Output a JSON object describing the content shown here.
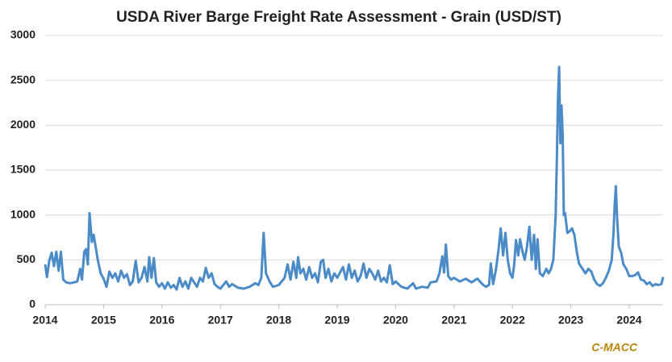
{
  "chart_data": {
    "type": "line",
    "title": "USDA River Barge Freight Rate Assessment - Grain (USD/ST)",
    "source": "C-MACC",
    "x": [
      2014.0,
      2014.03,
      2014.07,
      2014.11,
      2014.15,
      2014.19,
      2014.23,
      2014.27,
      2014.31,
      2014.36,
      2014.42,
      2014.5,
      2014.55,
      2014.6,
      2014.63,
      2014.67,
      2014.7,
      2014.73,
      2014.76,
      2014.8,
      2014.83,
      2014.86,
      2014.9,
      2014.95,
      2015.0,
      2015.05,
      2015.1,
      2015.15,
      2015.2,
      2015.25,
      2015.3,
      2015.35,
      2015.4,
      2015.45,
      2015.5,
      2015.55,
      2015.6,
      2015.65,
      2015.7,
      2015.75,
      2015.78,
      2015.82,
      2015.86,
      2015.9,
      2015.95,
      2016.0,
      2016.05,
      2016.1,
      2016.15,
      2016.2,
      2016.25,
      2016.3,
      2016.35,
      2016.4,
      2016.45,
      2016.5,
      2016.55,
      2016.6,
      2016.65,
      2016.7,
      2016.75,
      2016.8,
      2016.85,
      2016.9,
      2016.95,
      2017.0,
      2017.1,
      2017.15,
      2017.2,
      2017.3,
      2017.4,
      2017.5,
      2017.6,
      2017.65,
      2017.7,
      2017.74,
      2017.78,
      2017.85,
      2017.9,
      2018.0,
      2018.1,
      2018.15,
      2018.2,
      2018.25,
      2018.3,
      2018.33,
      2018.37,
      2018.42,
      2018.47,
      2018.52,
      2018.57,
      2018.62,
      2018.67,
      2018.72,
      2018.76,
      2018.8,
      2018.85,
      2018.9,
      2018.95,
      2019.0,
      2019.1,
      2019.15,
      2019.2,
      2019.25,
      2019.3,
      2019.35,
      2019.4,
      2019.45,
      2019.5,
      2019.55,
      2019.6,
      2019.65,
      2019.7,
      2019.75,
      2019.8,
      2019.85,
      2019.9,
      2019.95,
      2020.0,
      2020.1,
      2020.2,
      2020.3,
      2020.35,
      2020.45,
      2020.55,
      2020.6,
      2020.7,
      2020.75,
      2020.8,
      2020.83,
      2020.86,
      2020.9,
      2020.95,
      2021.0,
      2021.1,
      2021.2,
      2021.3,
      2021.4,
      2021.5,
      2021.55,
      2021.6,
      2021.63,
      2021.67,
      2021.72,
      2021.76,
      2021.8,
      2021.84,
      2021.88,
      2021.92,
      2021.96,
      2022.0,
      2022.03,
      2022.06,
      2022.1,
      2022.13,
      2022.17,
      2022.21,
      2022.25,
      2022.29,
      2022.33,
      2022.37,
      2022.4,
      2022.43,
      2022.47,
      2022.52,
      2022.58,
      2022.62,
      2022.66,
      2022.7,
      2022.74,
      2022.76,
      2022.78,
      2022.8,
      2022.82,
      2022.84,
      2022.86,
      2022.88,
      2022.9,
      2022.94,
      2022.98,
      2023.02,
      2023.06,
      2023.1,
      2023.14,
      2023.2,
      2023.25,
      2023.3,
      2023.35,
      2023.4,
      2023.45,
      2023.5,
      2023.55,
      2023.6,
      2023.65,
      2023.7,
      2023.73,
      2023.75,
      2023.77,
      2023.79,
      2023.82,
      2023.86,
      2023.9,
      2023.95,
      2024.0,
      2024.05,
      2024.1,
      2024.15,
      2024.2,
      2024.25,
      2024.3,
      2024.35,
      2024.4,
      2024.45,
      2024.5,
      2024.55,
      2024.58
    ],
    "series": [
      {
        "color": "#4a8bc8",
        "values": [
          450,
          310,
          490,
          580,
          430,
          590,
          380,
          590,
          280,
          250,
          240,
          250,
          260,
          400,
          280,
          590,
          620,
          450,
          1020,
          700,
          780,
          660,
          500,
          350,
          290,
          200,
          370,
          300,
          350,
          260,
          380,
          300,
          340,
          220,
          260,
          490,
          250,
          300,
          420,
          260,
          530,
          300,
          520,
          250,
          200,
          240,
          180,
          250,
          190,
          220,
          170,
          300,
          200,
          260,
          180,
          300,
          250,
          200,
          300,
          260,
          410,
          300,
          350,
          230,
          200,
          180,
          260,
          200,
          230,
          190,
          180,
          200,
          240,
          220,
          300,
          800,
          350,
          250,
          200,
          220,
          300,
          450,
          280,
          480,
          300,
          530,
          350,
          400,
          280,
          420,
          300,
          350,
          250,
          480,
          500,
          300,
          400,
          260,
          350,
          300,
          420,
          280,
          450,
          300,
          380,
          260,
          320,
          460,
          300,
          400,
          350,
          280,
          380,
          260,
          300,
          250,
          440,
          230,
          260,
          200,
          180,
          240,
          180,
          200,
          190,
          250,
          260,
          350,
          540,
          360,
          670,
          320,
          280,
          300,
          260,
          290,
          250,
          290,
          220,
          200,
          220,
          460,
          230,
          400,
          600,
          850,
          550,
          800,
          500,
          350,
          300,
          450,
          720,
          550,
          730,
          600,
          500,
          650,
          870,
          500,
          780,
          400,
          730,
          350,
          320,
          400,
          350,
          400,
          500,
          1000,
          1600,
          2300,
          2650,
          1800,
          2220,
          1900,
          1000,
          1020,
          800,
          820,
          850,
          780,
          600,
          460,
          400,
          350,
          400,
          370,
          280,
          230,
          210,
          240,
          300,
          380,
          500,
          800,
          1100,
          1320,
          1000,
          650,
          580,
          450,
          400,
          320,
          320,
          330,
          360,
          280,
          270,
          230,
          250,
          210,
          230,
          220,
          230,
          310
        ]
      }
    ],
    "xlim": [
      2014,
      2024.58
    ],
    "xticks": [
      2014,
      2015,
      2016,
      2017,
      2018,
      2019,
      2020,
      2021,
      2022,
      2023,
      2024
    ],
    "ylim": [
      0,
      3000
    ],
    "yticks": [
      0,
      500,
      1000,
      1500,
      2000,
      2500,
      3000
    ],
    "grid": true
  }
}
